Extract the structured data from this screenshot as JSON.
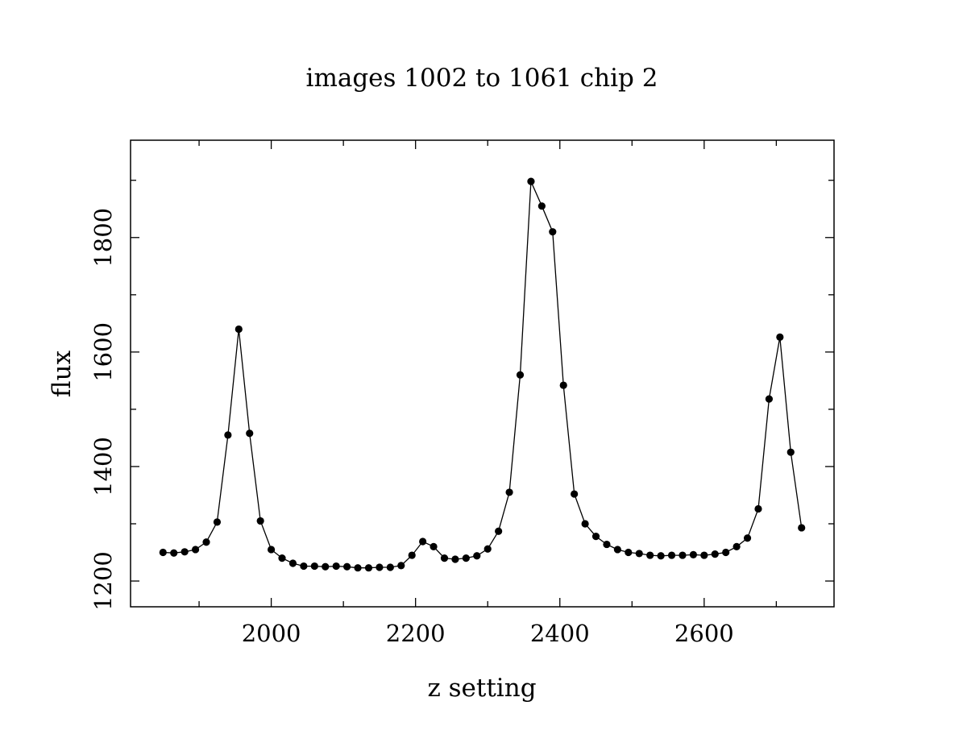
{
  "chart_data": {
    "type": "line",
    "title": "images 1002 to 1061 chip 2",
    "xlabel": "z setting",
    "ylabel": "flux",
    "xlim": [
      1805,
      2780
    ],
    "ylim": [
      1155,
      1970
    ],
    "x_ticks": [
      2000,
      2200,
      2400,
      2600
    ],
    "x_tick_labels": [
      "2000",
      "2200",
      "2400",
      "2600"
    ],
    "x_minor_ticks": [
      1900,
      2000,
      2100,
      2200,
      2300,
      2400,
      2500,
      2600,
      2700
    ],
    "y_ticks": [
      1200,
      1400,
      1600,
      1800
    ],
    "y_tick_labels": [
      "1200",
      "1400",
      "1600",
      "1800"
    ],
    "y_minor_ticks": [
      1200,
      1300,
      1400,
      1500,
      1600,
      1700,
      1800,
      1900
    ],
    "grid": false,
    "marker": "filled-circle",
    "series": [
      {
        "x": [
          1850,
          1865,
          1880,
          1895,
          1910,
          1925,
          1940,
          1955,
          1970,
          1985,
          2000,
          2015,
          2030,
          2045,
          2060,
          2075,
          2090,
          2105,
          2120,
          2135,
          2150,
          2165,
          2180,
          2195,
          2210,
          2225,
          2240,
          2255,
          2270,
          2285,
          2300,
          2315,
          2330,
          2345,
          2360,
          2375,
          2390,
          2405,
          2420,
          2435,
          2450,
          2465,
          2480,
          2495,
          2510,
          2525,
          2540,
          2555,
          2570,
          2585,
          2600,
          2615,
          2630,
          2645,
          2660,
          2675,
          2690,
          2705,
          2720,
          2735
        ],
        "y": [
          1250,
          1249,
          1251,
          1255,
          1268,
          1303,
          1455,
          1640,
          1458,
          1305,
          1255,
          1240,
          1231,
          1226,
          1226,
          1225,
          1226,
          1225,
          1223,
          1223,
          1224,
          1224,
          1227,
          1245,
          1269,
          1260,
          1240,
          1238,
          1240,
          1244,
          1256,
          1287,
          1355,
          1560,
          1898,
          1855,
          1810,
          1542,
          1352,
          1300,
          1278,
          1264,
          1255,
          1250,
          1248,
          1245,
          1244,
          1245,
          1245,
          1246,
          1245,
          1247,
          1250,
          1260,
          1275,
          1326,
          1518,
          1626,
          1425,
          1293
        ]
      }
    ]
  }
}
